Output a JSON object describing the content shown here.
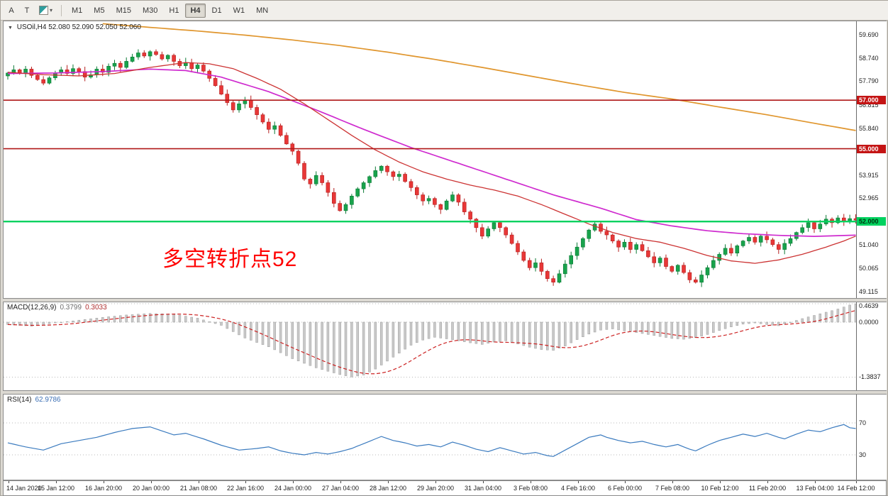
{
  "window": {
    "background": "#dcd9d2"
  },
  "toolbar": {
    "left_buttons": [
      {
        "label": "A"
      },
      {
        "label": "T"
      }
    ],
    "colors_dropdown_caret": "▾",
    "timeframes": [
      "M1",
      "M5",
      "M15",
      "M30",
      "H1",
      "H4",
      "D1",
      "W1",
      "MN"
    ],
    "active_timeframe": "H4"
  },
  "main_chart": {
    "dropdown_icon": "▼",
    "symbol_period": "USOil,H4",
    "quote_open": "52.080",
    "quote_high": "52.090",
    "quote_low": "52.050",
    "quote_close": "52.060",
    "annotation": {
      "text": "多空转折点52",
      "color": "#ff0000"
    },
    "levels": [
      {
        "value": 57.0,
        "label": "57.000",
        "line_color": "#b01818",
        "tag_bg": "#c41414",
        "tag_fg": "#ffffff"
      },
      {
        "value": 55.0,
        "label": "55.000",
        "line_color": "#b01818",
        "tag_bg": "#c41414",
        "tag_fg": "#ffffff"
      },
      {
        "value": 52.0,
        "label": "52.000",
        "line_color": "#00d25f",
        "tag_bg": "#00d25f",
        "tag_fg": "#00320f"
      }
    ],
    "y_axis_labels": [
      59.69,
      58.74,
      57.79,
      56.815,
      55.84,
      53.915,
      52.965,
      51.04,
      50.065,
      49.115
    ]
  },
  "macd_panel": {
    "title": "MACD(12,26,9)",
    "value_main": "0.3799",
    "value_signal": "0.3033",
    "axis_labels": [
      {
        "value": 0.4639,
        "label": "0.4639"
      },
      {
        "value": 0,
        "label": "0.0000"
      },
      {
        "value": -1.3837,
        "label": "-1.3837"
      }
    ]
  },
  "rsi_panel": {
    "title": "RSI(14)",
    "value": "62.9786",
    "levels": [
      70,
      30
    ],
    "axis_labels": [
      {
        "value": 70,
        "label": "70"
      },
      {
        "value": 30,
        "label": "30"
      }
    ]
  },
  "time_axis": {
    "labels": [
      "14 Jan 2020",
      "15 Jan 12:00",
      "16 Jan 20:00",
      "20 Jan 00:00",
      "21 Jan 08:00",
      "22 Jan 16:00",
      "24 Jan 00:00",
      "27 Jan 04:00",
      "28 Jan 12:00",
      "29 Jan 20:00",
      "31 Jan 04:00",
      "3 Feb 08:00",
      "4 Feb 16:00",
      "6 Feb 00:00",
      "7 Feb 08:00",
      "10 Feb 12:00",
      "11 Feb 20:00",
      "13 Feb 04:00",
      "14 Feb 12:00"
    ]
  },
  "chart_data": {
    "type": "candlestick",
    "symbol": "USOil",
    "timeframe": "H4",
    "bars": 144,
    "current_ohlc": {
      "open": 52.08,
      "high": 52.09,
      "low": 52.05,
      "close": 52.06
    },
    "price_axis": {
      "visible_min": 48.85,
      "visible_max": 60.25
    },
    "horizontal_levels": [
      57.0,
      55.0,
      52.0
    ],
    "candles": {
      "first_open": 58.0,
      "closes": [
        58.12,
        58.25,
        58.1,
        58.28,
        58.02,
        57.85,
        57.7,
        57.92,
        58.12,
        58.25,
        58.1,
        58.3,
        58.18,
        57.95,
        58.05,
        58.28,
        58.15,
        58.4,
        58.52,
        58.35,
        58.6,
        58.78,
        58.95,
        58.82,
        59.0,
        58.88,
        58.7,
        58.85,
        58.6,
        58.42,
        58.55,
        58.3,
        58.45,
        58.2,
        57.9,
        57.6,
        57.25,
        56.9,
        56.6,
        56.85,
        57.0,
        56.7,
        56.4,
        56.1,
        55.8,
        55.95,
        55.55,
        55.2,
        54.9,
        54.4,
        53.75,
        53.55,
        53.9,
        53.6,
        53.2,
        52.75,
        52.45,
        52.7,
        53.05,
        53.35,
        53.6,
        53.85,
        54.1,
        54.28,
        54.05,
        53.85,
        53.95,
        53.65,
        53.4,
        53.1,
        52.85,
        52.95,
        52.7,
        52.5,
        52.85,
        53.1,
        52.8,
        52.4,
        52.1,
        51.75,
        51.4,
        51.7,
        51.95,
        51.75,
        51.45,
        51.1,
        50.75,
        50.4,
        50.1,
        50.3,
        49.95,
        49.65,
        49.5,
        49.85,
        50.25,
        50.6,
        50.95,
        51.3,
        51.65,
        51.9,
        51.6,
        51.45,
        51.2,
        50.95,
        51.15,
        50.85,
        51.05,
        50.8,
        50.55,
        50.3,
        50.5,
        50.15,
        49.95,
        50.2,
        49.9,
        49.6,
        49.5,
        49.8,
        50.1,
        50.4,
        50.65,
        50.9,
        50.7,
        51.0,
        51.2,
        51.35,
        51.15,
        51.4,
        51.25,
        51.05,
        50.85,
        51.1,
        51.3,
        51.55,
        51.75,
        51.95,
        51.7,
        51.9,
        52.1,
        51.95,
        52.15,
        52.0,
        52.12,
        52.06
      ]
    },
    "overlays": {
      "ma_slow_orange": {
        "color": "#e0962e",
        "points": [
          [
            16,
            60.15
          ],
          [
            24,
            60.0
          ],
          [
            32,
            59.85
          ],
          [
            40,
            59.68
          ],
          [
            48,
            59.48
          ],
          [
            56,
            59.25
          ],
          [
            64,
            58.98
          ],
          [
            72,
            58.68
          ],
          [
            80,
            58.35
          ],
          [
            88,
            58.0
          ],
          [
            96,
            57.65
          ],
          [
            104,
            57.32
          ],
          [
            112,
            57.05
          ],
          [
            120,
            56.72
          ],
          [
            128,
            56.4
          ],
          [
            136,
            56.05
          ],
          [
            143,
            55.75
          ]
        ]
      },
      "ma_mid_magenta": {
        "color": "#cf2bcf",
        "points": [
          [
            0,
            58.1
          ],
          [
            8,
            58.12
          ],
          [
            16,
            58.18
          ],
          [
            24,
            58.28
          ],
          [
            30,
            58.22
          ],
          [
            36,
            57.95
          ],
          [
            44,
            57.35
          ],
          [
            52,
            56.6
          ],
          [
            60,
            55.8
          ],
          [
            68,
            55.05
          ],
          [
            76,
            54.4
          ],
          [
            84,
            53.75
          ],
          [
            92,
            53.1
          ],
          [
            100,
            52.55
          ],
          [
            106,
            52.08
          ],
          [
            112,
            51.82
          ],
          [
            118,
            51.62
          ],
          [
            124,
            51.5
          ],
          [
            130,
            51.43
          ],
          [
            136,
            51.39
          ],
          [
            143,
            51.44
          ]
        ]
      },
      "ma_fast_red": {
        "color": "#cc3333",
        "points": [
          [
            0,
            58.15
          ],
          [
            6,
            58.05
          ],
          [
            12,
            58.0
          ],
          [
            18,
            58.1
          ],
          [
            24,
            58.35
          ],
          [
            30,
            58.55
          ],
          [
            34,
            58.5
          ],
          [
            38,
            58.3
          ],
          [
            42,
            57.9
          ],
          [
            46,
            57.45
          ],
          [
            50,
            56.85
          ],
          [
            54,
            56.2
          ],
          [
            58,
            55.55
          ],
          [
            62,
            54.95
          ],
          [
            66,
            54.45
          ],
          [
            70,
            54.05
          ],
          [
            74,
            53.75
          ],
          [
            78,
            53.5
          ],
          [
            82,
            53.3
          ],
          [
            86,
            53.05
          ],
          [
            90,
            52.7
          ],
          [
            94,
            52.3
          ],
          [
            98,
            51.9
          ],
          [
            102,
            51.55
          ],
          [
            106,
            51.3
          ],
          [
            110,
            51.15
          ],
          [
            114,
            50.9
          ],
          [
            118,
            50.6
          ],
          [
            122,
            50.38
          ],
          [
            126,
            50.28
          ],
          [
            130,
            50.42
          ],
          [
            134,
            50.65
          ],
          [
            138,
            50.95
          ],
          [
            141,
            51.2
          ],
          [
            143,
            51.4
          ]
        ]
      }
    },
    "macd": {
      "histogram_color": "#c9c9c9",
      "signal_color": "#cc2222",
      "current_values": [
        0.3799,
        0.3033
      ],
      "control_points": [
        [
          0,
          -0.06
        ],
        [
          4,
          -0.1
        ],
        [
          8,
          -0.02
        ],
        [
          12,
          0.05
        ],
        [
          16,
          0.12
        ],
        [
          20,
          0.18
        ],
        [
          24,
          0.22
        ],
        [
          28,
          0.2
        ],
        [
          32,
          0.1
        ],
        [
          36,
          -0.08
        ],
        [
          40,
          -0.4
        ],
        [
          44,
          -0.62
        ],
        [
          48,
          -0.92
        ],
        [
          52,
          -1.15
        ],
        [
          56,
          -1.32
        ],
        [
          58,
          -1.38
        ],
        [
          60,
          -1.33
        ],
        [
          62,
          -1.18
        ],
        [
          64,
          -0.98
        ],
        [
          66,
          -0.78
        ],
        [
          68,
          -0.58
        ],
        [
          70,
          -0.45
        ],
        [
          72,
          -0.38
        ],
        [
          74,
          -0.42
        ],
        [
          76,
          -0.47
        ],
        [
          78,
          -0.52
        ],
        [
          80,
          -0.56
        ],
        [
          82,
          -0.5
        ],
        [
          84,
          -0.47
        ],
        [
          86,
          -0.55
        ],
        [
          88,
          -0.63
        ],
        [
          90,
          -0.69
        ],
        [
          92,
          -0.71
        ],
        [
          94,
          -0.6
        ],
        [
          96,
          -0.44
        ],
        [
          98,
          -0.3
        ],
        [
          100,
          -0.2
        ],
        [
          102,
          -0.17
        ],
        [
          104,
          -0.22
        ],
        [
          106,
          -0.26
        ],
        [
          108,
          -0.31
        ],
        [
          110,
          -0.36
        ],
        [
          112,
          -0.41
        ],
        [
          114,
          -0.43
        ],
        [
          116,
          -0.39
        ],
        [
          118,
          -0.31
        ],
        [
          120,
          -0.21
        ],
        [
          122,
          -0.12
        ],
        [
          124,
          -0.05
        ],
        [
          126,
          -0.02
        ],
        [
          128,
          -0.06
        ],
        [
          130,
          -0.09
        ],
        [
          132,
          0.0
        ],
        [
          134,
          0.09
        ],
        [
          136,
          0.17
        ],
        [
          138,
          0.25
        ],
        [
          140,
          0.33
        ],
        [
          142,
          0.43
        ],
        [
          143,
          0.46
        ]
      ]
    },
    "rsi": {
      "line_color": "#3b7bbf",
      "current_value": 62.9786,
      "control_points": [
        [
          0,
          45
        ],
        [
          3,
          40
        ],
        [
          6,
          36
        ],
        [
          9,
          44
        ],
        [
          12,
          48
        ],
        [
          15,
          52
        ],
        [
          18,
          58
        ],
        [
          21,
          63
        ],
        [
          24,
          65
        ],
        [
          26,
          60
        ],
        [
          28,
          55
        ],
        [
          30,
          57
        ],
        [
          33,
          50
        ],
        [
          36,
          42
        ],
        [
          39,
          36
        ],
        [
          42,
          38
        ],
        [
          44,
          40
        ],
        [
          46,
          35
        ],
        [
          48,
          32
        ],
        [
          50,
          30
        ],
        [
          52,
          33
        ],
        [
          54,
          31
        ],
        [
          56,
          34
        ],
        [
          58,
          38
        ],
        [
          60,
          44
        ],
        [
          62,
          50
        ],
        [
          63,
          53
        ],
        [
          65,
          48
        ],
        [
          67,
          45
        ],
        [
          69,
          41
        ],
        [
          71,
          43
        ],
        [
          73,
          40
        ],
        [
          75,
          46
        ],
        [
          77,
          42
        ],
        [
          79,
          37
        ],
        [
          81,
          34
        ],
        [
          83,
          39
        ],
        [
          85,
          35
        ],
        [
          87,
          31
        ],
        [
          89,
          33
        ],
        [
          91,
          29
        ],
        [
          92,
          28
        ],
        [
          94,
          36
        ],
        [
          96,
          44
        ],
        [
          98,
          52
        ],
        [
          100,
          55
        ],
        [
          101,
          52
        ],
        [
          103,
          48
        ],
        [
          105,
          45
        ],
        [
          107,
          47
        ],
        [
          109,
          43
        ],
        [
          111,
          40
        ],
        [
          113,
          43
        ],
        [
          115,
          37
        ],
        [
          116,
          35
        ],
        [
          118,
          42
        ],
        [
          120,
          48
        ],
        [
          122,
          52
        ],
        [
          124,
          56
        ],
        [
          126,
          53
        ],
        [
          128,
          57
        ],
        [
          130,
          52
        ],
        [
          131,
          50
        ],
        [
          133,
          56
        ],
        [
          135,
          61
        ],
        [
          137,
          59
        ],
        [
          139,
          64
        ],
        [
          140,
          66
        ],
        [
          141,
          68
        ],
        [
          142,
          64
        ],
        [
          143,
          63
        ]
      ]
    }
  }
}
